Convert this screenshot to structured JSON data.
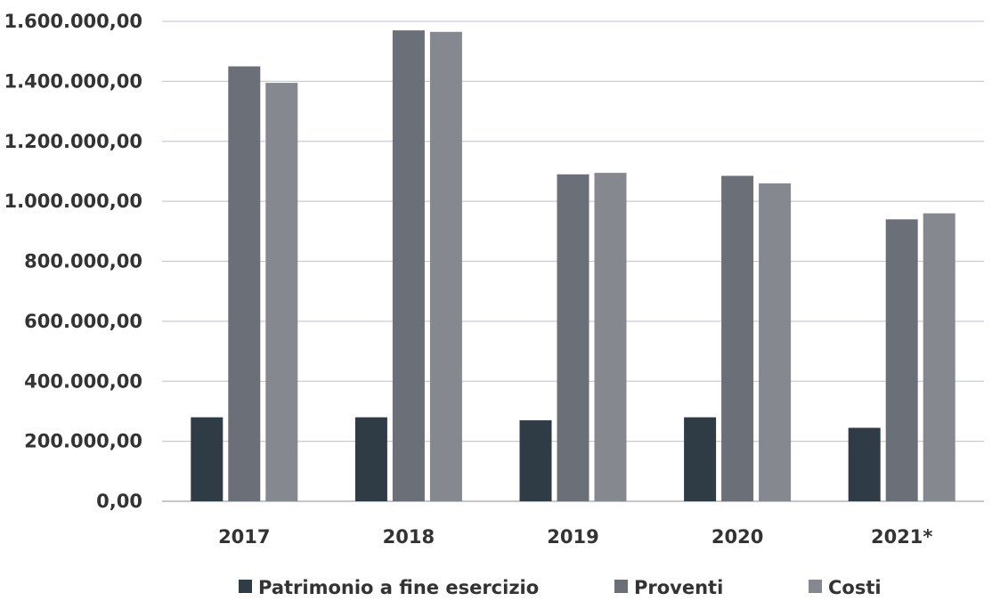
{
  "chart_data": {
    "type": "bar",
    "categories": [
      "2017",
      "2018",
      "2019",
      "2020",
      "2021*"
    ],
    "series": [
      {
        "name": "Patrimonio a fine esercizio",
        "color": "#2f3b45",
        "values": [
          280000,
          280000,
          270000,
          280000,
          245000
        ]
      },
      {
        "name": "Proventi",
        "color": "#6b6f78",
        "values": [
          1450000,
          1570000,
          1090000,
          1085000,
          940000
        ]
      },
      {
        "name": "Costi",
        "color": "#85898f",
        "values": [
          1395000,
          1565000,
          1095000,
          1060000,
          960000
        ]
      }
    ],
    "yticks": [
      "0,00",
      "200.000,00",
      "400.000,00",
      "600.000,00",
      "800.000,00",
      "1.000.000,00",
      "1.200.000,00",
      "1.400.000,00",
      "1.600.000,00"
    ],
    "ylim": [
      0,
      1600000
    ],
    "grid": true,
    "legend": "bottom"
  }
}
